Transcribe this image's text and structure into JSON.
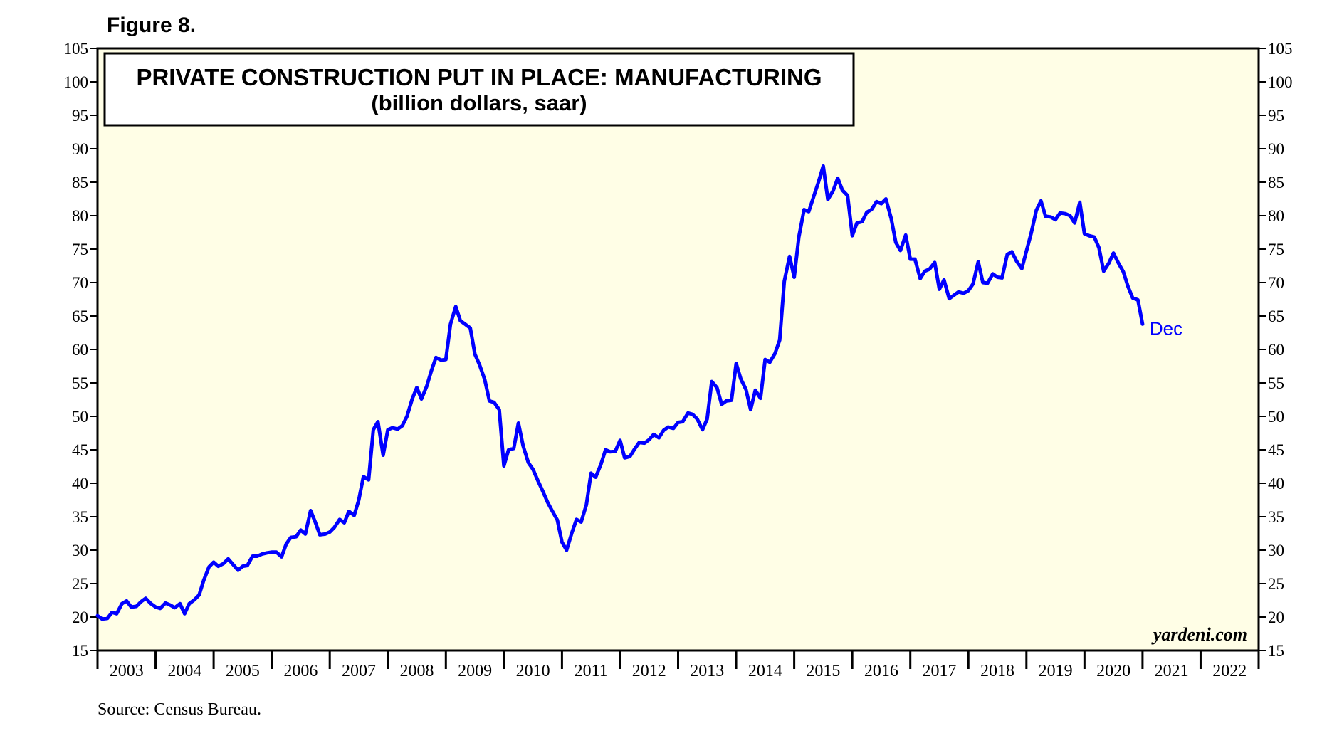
{
  "figure_label": "Figure 8.",
  "source": "Source: Census Bureau.",
  "credit": "yardeni.com",
  "chart_data": {
    "type": "line",
    "title": "PRIVATE CONSTRUCTION PUT IN PLACE: MANUFACTURING",
    "subtitle": "(billion dollars, saar)",
    "xlabel": "",
    "ylabel": "",
    "x_range": [
      2003,
      2023
    ],
    "ylim": [
      15,
      105
    ],
    "y_ticks": [
      "15",
      "20",
      "25",
      "30",
      "35",
      "40",
      "45",
      "50",
      "55",
      "60",
      "65",
      "70",
      "75",
      "80",
      "85",
      "90",
      "95",
      "100",
      "105"
    ],
    "x_tick_labels": [
      "2003",
      "2004",
      "2005",
      "2006",
      "2007",
      "2008",
      "2009",
      "2010",
      "2011",
      "2012",
      "2013",
      "2014",
      "2015",
      "2016",
      "2017",
      "2018",
      "2019",
      "2020",
      "2021",
      "2022"
    ],
    "background_color": "#fffee6",
    "line_color": "#0000ff",
    "end_label": "Dec",
    "grid": false,
    "series": [
      {
        "points": [
          [
            2003.0,
            20.2
          ],
          [
            2003.08,
            19.7
          ],
          [
            2003.17,
            19.8
          ],
          [
            2003.25,
            20.7
          ],
          [
            2003.33,
            20.5
          ],
          [
            2003.42,
            22.0
          ],
          [
            2003.5,
            22.4
          ],
          [
            2003.58,
            21.5
          ],
          [
            2003.67,
            21.6
          ],
          [
            2003.75,
            22.3
          ],
          [
            2003.83,
            22.8
          ],
          [
            2003.92,
            22.0
          ],
          [
            2004.0,
            21.5
          ],
          [
            2004.08,
            21.3
          ],
          [
            2004.17,
            22.1
          ],
          [
            2004.25,
            21.8
          ],
          [
            2004.33,
            21.4
          ],
          [
            2004.42,
            22.0
          ],
          [
            2004.5,
            20.5
          ],
          [
            2004.58,
            22.0
          ],
          [
            2004.67,
            22.6
          ],
          [
            2004.75,
            23.3
          ],
          [
            2004.83,
            25.5
          ],
          [
            2004.92,
            27.5
          ],
          [
            2005.0,
            28.2
          ],
          [
            2005.08,
            27.6
          ],
          [
            2005.17,
            28.0
          ],
          [
            2005.25,
            28.7
          ],
          [
            2005.33,
            27.9
          ],
          [
            2005.42,
            27.0
          ],
          [
            2005.5,
            27.6
          ],
          [
            2005.58,
            27.7
          ],
          [
            2005.67,
            29.1
          ],
          [
            2005.75,
            29.1
          ],
          [
            2005.83,
            29.4
          ],
          [
            2005.92,
            29.6
          ],
          [
            2006.0,
            29.7
          ],
          [
            2006.08,
            29.7
          ],
          [
            2006.17,
            29.0
          ],
          [
            2006.25,
            30.9
          ],
          [
            2006.33,
            31.9
          ],
          [
            2006.42,
            32.0
          ],
          [
            2006.5,
            33.0
          ],
          [
            2006.58,
            32.4
          ],
          [
            2006.67,
            35.9
          ],
          [
            2006.75,
            34.2
          ],
          [
            2006.83,
            32.3
          ],
          [
            2006.92,
            32.4
          ],
          [
            2007.0,
            32.7
          ],
          [
            2007.08,
            33.4
          ],
          [
            2007.17,
            34.6
          ],
          [
            2007.25,
            34.1
          ],
          [
            2007.33,
            35.8
          ],
          [
            2007.42,
            35.2
          ],
          [
            2007.5,
            37.5
          ],
          [
            2007.58,
            41.0
          ],
          [
            2007.67,
            40.5
          ],
          [
            2007.75,
            48.0
          ],
          [
            2007.83,
            49.2
          ],
          [
            2007.92,
            44.2
          ],
          [
            2008.0,
            48.0
          ],
          [
            2008.08,
            48.3
          ],
          [
            2008.17,
            48.1
          ],
          [
            2008.25,
            48.6
          ],
          [
            2008.33,
            50.0
          ],
          [
            2008.42,
            52.6
          ],
          [
            2008.5,
            54.3
          ],
          [
            2008.58,
            52.6
          ],
          [
            2008.67,
            54.5
          ],
          [
            2008.75,
            56.8
          ],
          [
            2008.83,
            58.8
          ],
          [
            2008.92,
            58.4
          ],
          [
            2009.0,
            58.5
          ],
          [
            2009.08,
            63.8
          ],
          [
            2009.17,
            66.4
          ],
          [
            2009.25,
            64.3
          ],
          [
            2009.33,
            63.8
          ],
          [
            2009.42,
            63.2
          ],
          [
            2009.5,
            59.3
          ],
          [
            2009.58,
            57.7
          ],
          [
            2009.67,
            55.5
          ],
          [
            2009.75,
            52.3
          ],
          [
            2009.83,
            52.1
          ],
          [
            2009.92,
            51.0
          ],
          [
            2010.0,
            42.6
          ],
          [
            2010.08,
            45.0
          ],
          [
            2010.17,
            45.2
          ],
          [
            2010.25,
            49.0
          ],
          [
            2010.33,
            45.6
          ],
          [
            2010.42,
            43.1
          ],
          [
            2010.5,
            42.1
          ],
          [
            2010.58,
            40.5
          ],
          [
            2010.67,
            38.8
          ],
          [
            2010.75,
            37.2
          ],
          [
            2010.83,
            35.9
          ],
          [
            2010.92,
            34.5
          ],
          [
            2011.0,
            31.2
          ],
          [
            2011.08,
            30.0
          ],
          [
            2011.17,
            32.6
          ],
          [
            2011.25,
            34.6
          ],
          [
            2011.33,
            34.2
          ],
          [
            2011.42,
            36.8
          ],
          [
            2011.5,
            41.5
          ],
          [
            2011.58,
            40.9
          ],
          [
            2011.67,
            42.8
          ],
          [
            2011.75,
            45.0
          ],
          [
            2011.83,
            44.7
          ],
          [
            2011.92,
            44.8
          ],
          [
            2012.0,
            46.4
          ],
          [
            2012.08,
            43.8
          ],
          [
            2012.17,
            44.0
          ],
          [
            2012.25,
            45.1
          ],
          [
            2012.33,
            46.1
          ],
          [
            2012.42,
            46.0
          ],
          [
            2012.5,
            46.5
          ],
          [
            2012.58,
            47.3
          ],
          [
            2012.67,
            46.8
          ],
          [
            2012.75,
            47.9
          ],
          [
            2012.83,
            48.4
          ],
          [
            2012.92,
            48.2
          ],
          [
            2013.0,
            49.1
          ],
          [
            2013.08,
            49.2
          ],
          [
            2013.17,
            50.5
          ],
          [
            2013.25,
            50.3
          ],
          [
            2013.33,
            49.6
          ],
          [
            2013.42,
            48.0
          ],
          [
            2013.5,
            49.6
          ],
          [
            2013.58,
            55.2
          ],
          [
            2013.67,
            54.3
          ],
          [
            2013.75,
            51.8
          ],
          [
            2013.83,
            52.3
          ],
          [
            2013.92,
            52.4
          ],
          [
            2014.0,
            57.9
          ],
          [
            2014.08,
            55.6
          ],
          [
            2014.17,
            54.0
          ],
          [
            2014.25,
            51.0
          ],
          [
            2014.33,
            53.9
          ],
          [
            2014.42,
            52.7
          ],
          [
            2014.5,
            58.5
          ],
          [
            2014.58,
            58.1
          ],
          [
            2014.67,
            59.4
          ],
          [
            2014.75,
            61.4
          ],
          [
            2014.83,
            70.2
          ],
          [
            2014.92,
            73.9
          ],
          [
            2015.0,
            70.8
          ],
          [
            2015.08,
            76.8
          ],
          [
            2015.17,
            80.9
          ],
          [
            2015.25,
            80.6
          ],
          [
            2015.33,
            82.7
          ],
          [
            2015.42,
            85.1
          ],
          [
            2015.5,
            87.4
          ],
          [
            2015.58,
            82.4
          ],
          [
            2015.67,
            83.7
          ],
          [
            2015.75,
            85.6
          ],
          [
            2015.83,
            83.8
          ],
          [
            2015.92,
            83.0
          ],
          [
            2016.0,
            77.0
          ],
          [
            2016.08,
            78.9
          ],
          [
            2016.17,
            79.1
          ],
          [
            2016.25,
            80.5
          ],
          [
            2016.33,
            80.9
          ],
          [
            2016.42,
            82.1
          ],
          [
            2016.5,
            81.8
          ],
          [
            2016.58,
            82.5
          ],
          [
            2016.67,
            79.6
          ],
          [
            2016.75,
            76.0
          ],
          [
            2016.83,
            74.8
          ],
          [
            2016.92,
            77.1
          ],
          [
            2017.0,
            73.5
          ],
          [
            2017.08,
            73.5
          ],
          [
            2017.17,
            70.6
          ],
          [
            2017.25,
            71.7
          ],
          [
            2017.33,
            72.0
          ],
          [
            2017.42,
            73.0
          ],
          [
            2017.5,
            69.0
          ],
          [
            2017.58,
            70.4
          ],
          [
            2017.67,
            67.6
          ],
          [
            2017.75,
            68.1
          ],
          [
            2017.83,
            68.6
          ],
          [
            2017.92,
            68.4
          ],
          [
            2018.0,
            68.8
          ],
          [
            2018.08,
            69.8
          ],
          [
            2018.17,
            73.1
          ],
          [
            2018.25,
            70.0
          ],
          [
            2018.33,
            69.9
          ],
          [
            2018.42,
            71.3
          ],
          [
            2018.5,
            70.8
          ],
          [
            2018.58,
            70.7
          ],
          [
            2018.67,
            74.2
          ],
          [
            2018.75,
            74.6
          ],
          [
            2018.83,
            73.2
          ],
          [
            2018.92,
            72.1
          ],
          [
            2019.0,
            74.7
          ],
          [
            2019.08,
            77.3
          ],
          [
            2019.17,
            80.8
          ],
          [
            2019.25,
            82.2
          ],
          [
            2019.33,
            79.9
          ],
          [
            2019.42,
            79.8
          ],
          [
            2019.5,
            79.4
          ],
          [
            2019.58,
            80.4
          ],
          [
            2019.67,
            80.3
          ],
          [
            2019.75,
            80.0
          ],
          [
            2019.83,
            78.9
          ],
          [
            2019.92,
            82.0
          ],
          [
            2020.0,
            77.3
          ],
          [
            2020.08,
            77.0
          ],
          [
            2020.17,
            76.8
          ],
          [
            2020.25,
            75.2
          ],
          [
            2020.33,
            71.7
          ],
          [
            2020.42,
            72.9
          ],
          [
            2020.5,
            74.4
          ],
          [
            2020.58,
            73.0
          ],
          [
            2020.67,
            71.6
          ],
          [
            2020.75,
            69.4
          ],
          [
            2020.83,
            67.7
          ],
          [
            2020.92,
            67.4
          ],
          [
            2021.0,
            63.8
          ]
        ]
      }
    ]
  }
}
